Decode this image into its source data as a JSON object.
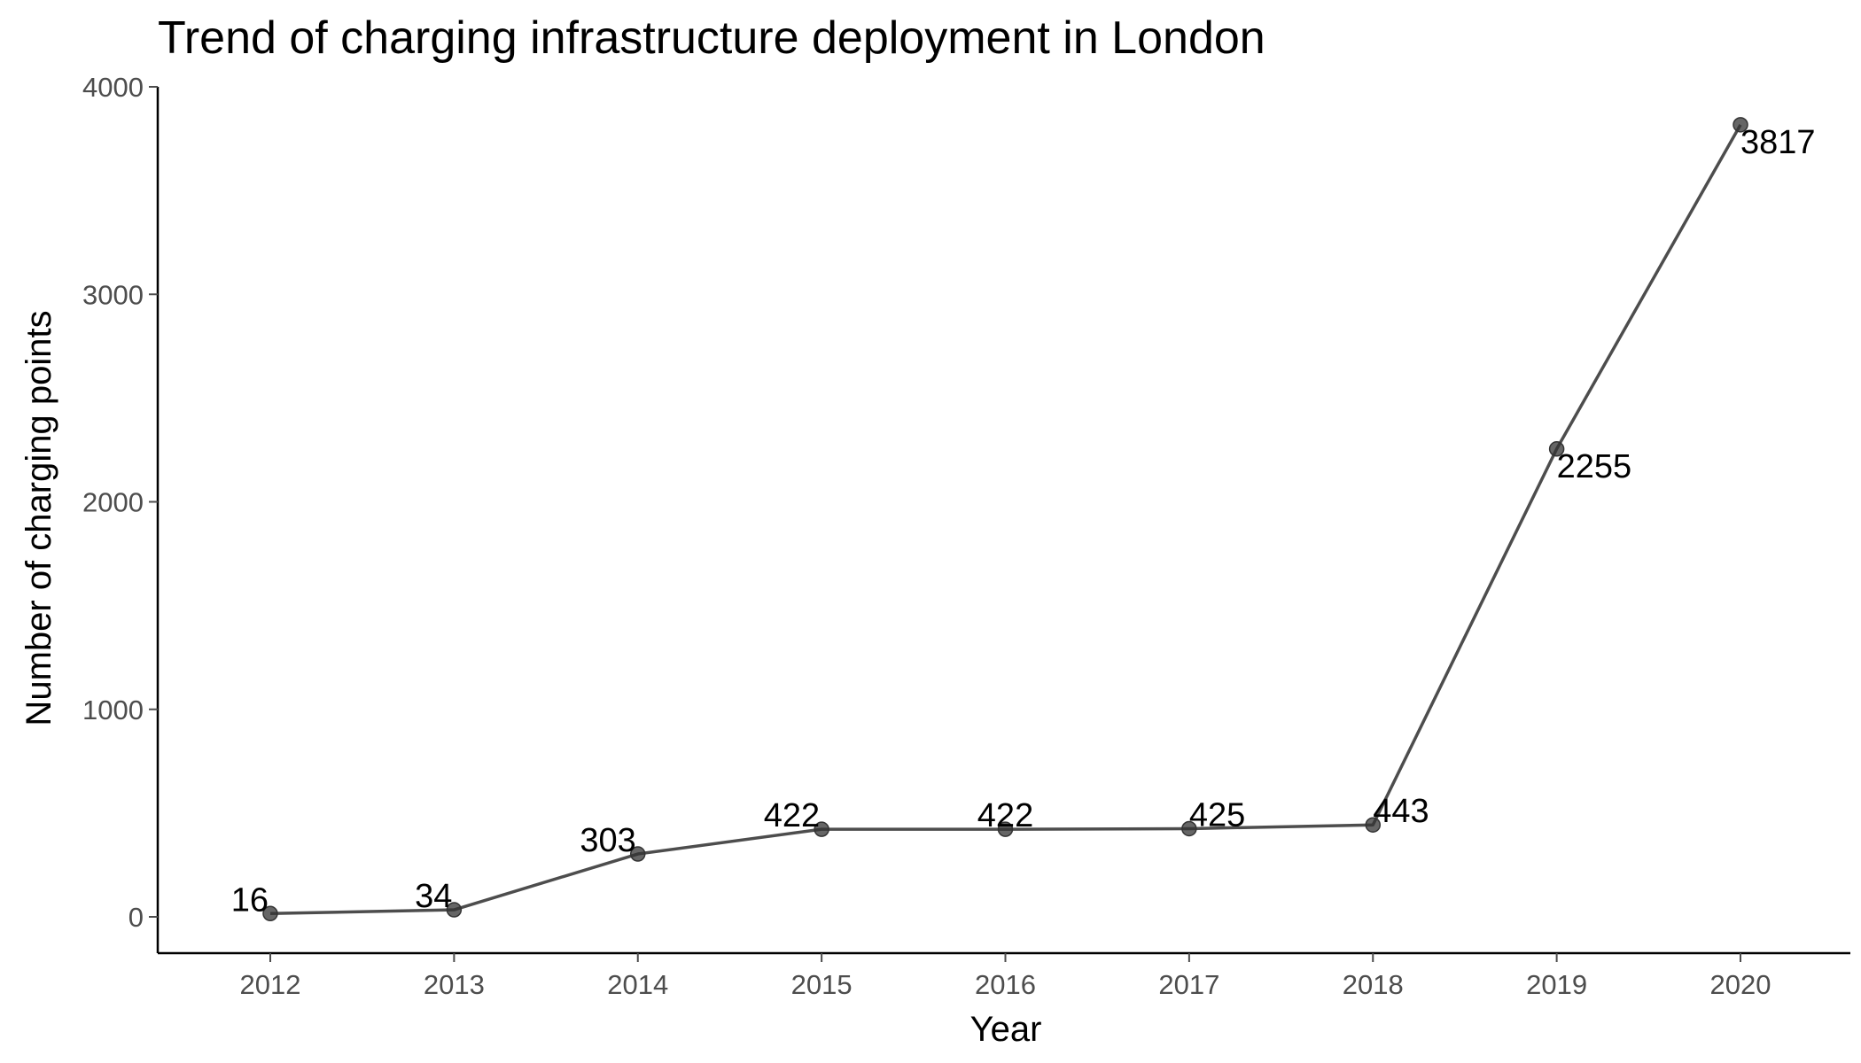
{
  "chart_data": {
    "type": "line",
    "title": "Trend of charging infrastructure deployment in London",
    "xlabel": "Year",
    "ylabel": "Number of charging points",
    "x": [
      "2012",
      "2013",
      "2014",
      "2015",
      "2016",
      "2017",
      "2018",
      "2019",
      "2020"
    ],
    "series": [
      {
        "values": [
          16,
          34,
          303,
          422,
          422,
          425,
          443,
          2255,
          3817
        ]
      }
    ],
    "data_labels": [
      "16",
      "34",
      "303",
      "422",
      "422",
      "425",
      "443",
      "2255",
      "3817"
    ],
    "ylim": [
      -175,
      4000
    ],
    "y_ticks": [
      "0",
      "1000",
      "2000",
      "3000",
      "4000"
    ],
    "grid": false,
    "legend": "none",
    "colors": {
      "line": "#4d4d4d",
      "point": "#333333",
      "axis": "#000000",
      "tick_label": "#4d4d4d"
    }
  }
}
